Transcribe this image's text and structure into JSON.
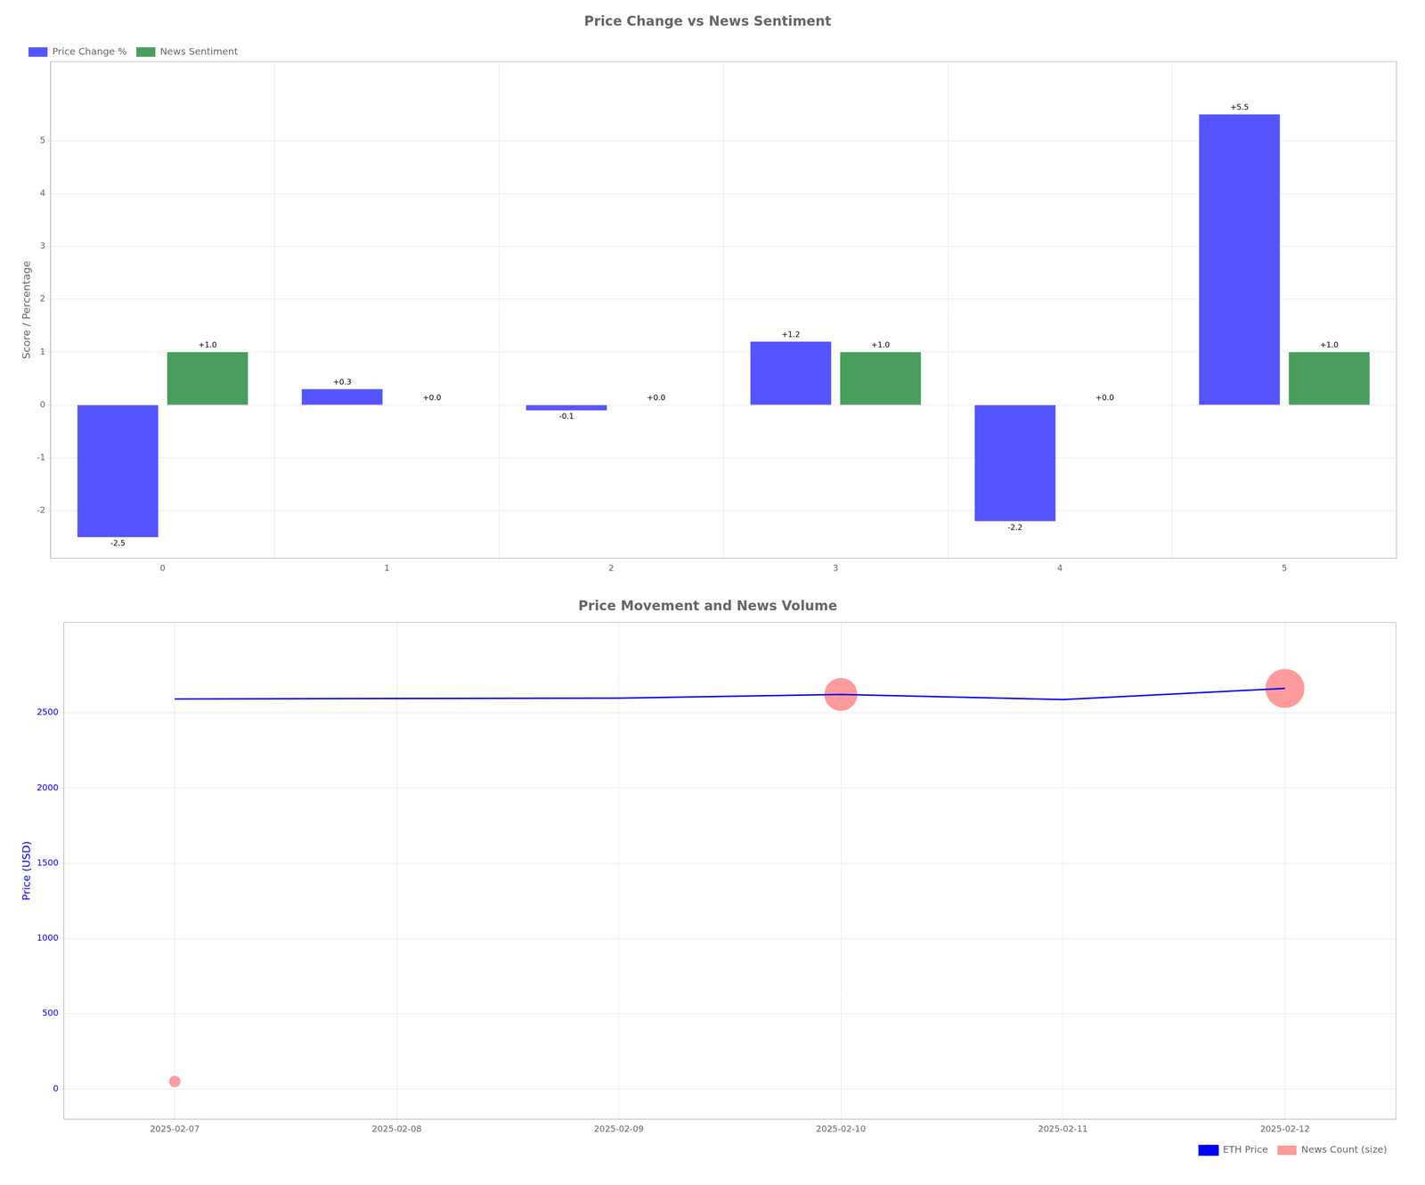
{
  "chart_data": [
    {
      "type": "bar",
      "title": "Price Change vs News Sentiment",
      "y_label": "Score / Percentage",
      "categories": [
        "0",
        "1",
        "2",
        "3",
        "4",
        "5"
      ],
      "series": [
        {
          "name": "Price Change %",
          "color": "#5555ff",
          "values": [
            -2.5,
            0.3,
            -0.1,
            1.2,
            -2.2,
            5.5
          ],
          "value_labels": [
            "-2.5",
            "+0.3",
            "-0.1",
            "+1.2",
            "-2.2",
            "+5.5"
          ]
        },
        {
          "name": "News Sentiment",
          "color": "#4a9e5c",
          "values": [
            1.0,
            0.0,
            0.0,
            1.0,
            0.0,
            1.0
          ],
          "value_labels": [
            "+1.0",
            "+0.0",
            "+0.0",
            "+1.0",
            "+0.0",
            "+1.0"
          ]
        }
      ],
      "ylim": [
        -2.9,
        6.5
      ],
      "yticks": [
        -2,
        -1,
        0,
        1,
        2,
        3,
        4,
        5
      ],
      "grid": true,
      "legend": "upper left",
      "data_labels": true
    },
    {
      "type": "line",
      "title": "Price Movement and News Volume",
      "y_label": "Price (USD)",
      "categories": [
        "2025-02-07",
        "2025-02-08",
        "2025-02-09",
        "2025-02-10",
        "2025-02-11",
        "2025-02-12"
      ],
      "series": [
        {
          "name": "ETH Price",
          "type": "line",
          "color": "#0000ff",
          "values": [
            2592,
            2595,
            2597,
            2622,
            2588,
            2662
          ]
        },
        {
          "name": "News Count (size)",
          "type": "scatter",
          "color": "#ff7070",
          "values": [
            50,
            null,
            null,
            2622,
            null,
            2662
          ],
          "sizes": [
            300,
            null,
            null,
            2500,
            null,
            3500
          ]
        }
      ],
      "ylim": [
        -200,
        3100
      ],
      "yticks": [
        0,
        500,
        1000,
        1500,
        2000,
        2500
      ],
      "grid": true,
      "legend": "lower right"
    }
  ]
}
